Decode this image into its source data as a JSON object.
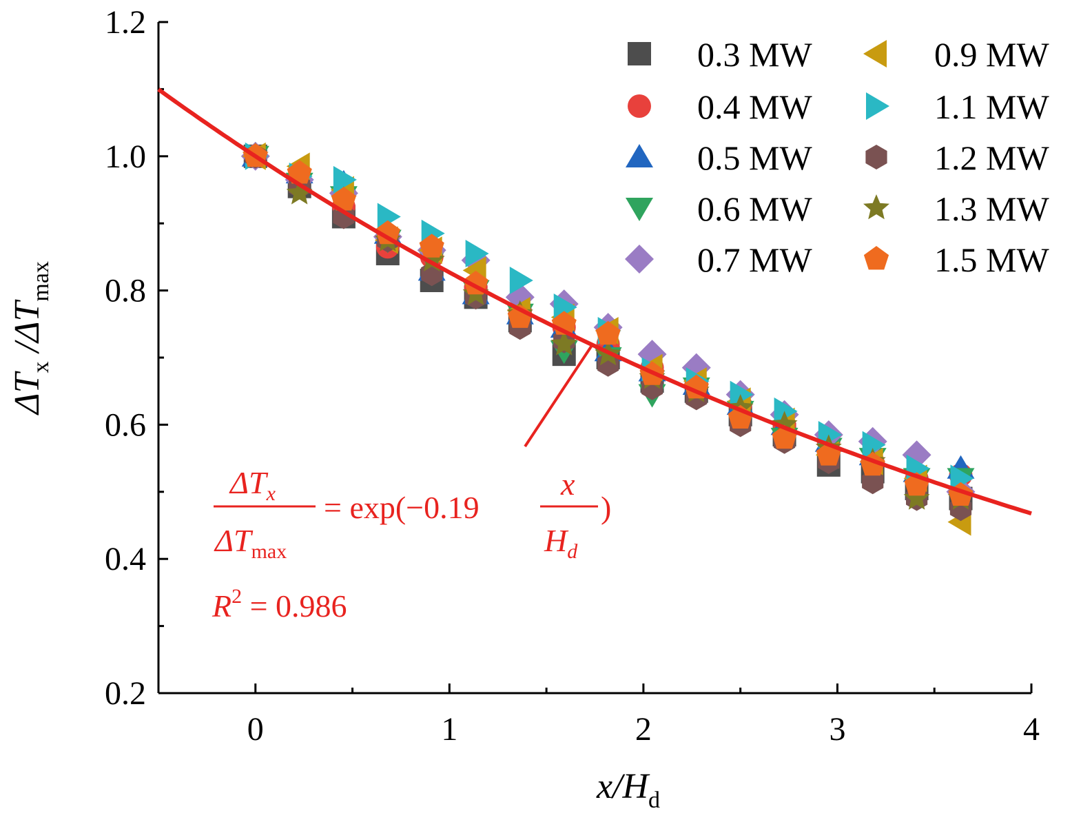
{
  "chart_data": {
    "type": "scatter",
    "xlabel": "x/H",
    "xlabel_sub": "d",
    "ylabel": "ΔT",
    "ylabel_sub1": "x",
    "ylabel_mid": " /ΔT",
    "ylabel_sub2": "max",
    "xlim": [
      -0.5,
      4
    ],
    "ylim": [
      0.2,
      1.2
    ],
    "x_ticks": [
      0,
      1,
      2,
      3,
      4
    ],
    "x_tick_labels": [
      "0",
      "1",
      "2",
      "3",
      "4"
    ],
    "y_ticks": [
      0.2,
      0.4,
      0.6,
      0.8,
      1.0,
      1.2
    ],
    "y_tick_labels": [
      "0.2",
      "0.4",
      "0.6",
      "0.8",
      "1.0",
      "1.2"
    ],
    "legend_position": "top-right",
    "x": [
      0,
      0.227,
      0.455,
      0.682,
      0.909,
      1.136,
      1.364,
      1.591,
      1.818,
      2.045,
      2.273,
      2.5,
      2.727,
      2.955,
      3.182,
      3.409,
      3.636
    ],
    "series": [
      {
        "name": "0.3 MW",
        "marker": "square",
        "color": "#4d4d4d",
        "values": [
          1.0,
          0.955,
          0.91,
          0.855,
          0.815,
          0.79,
          0.755,
          0.705,
          0.7,
          0.665,
          0.65,
          0.615,
          0.585,
          0.54,
          0.53,
          0.505,
          0.49
        ]
      },
      {
        "name": "0.4 MW",
        "marker": "circle",
        "color": "#e8413c",
        "values": [
          1.0,
          0.97,
          0.925,
          0.865,
          0.85,
          0.805,
          0.77,
          0.745,
          0.72,
          0.685,
          0.66,
          0.63,
          0.6,
          0.575,
          0.545,
          0.52,
          0.525
        ]
      },
      {
        "name": "0.5 MW",
        "marker": "triangle-up",
        "color": "#2166c0",
        "values": [
          1.0,
          0.975,
          0.96,
          0.885,
          0.83,
          0.795,
          0.765,
          0.745,
          0.71,
          0.68,
          0.66,
          0.63,
          0.6,
          0.575,
          0.555,
          0.53,
          0.535
        ]
      },
      {
        "name": "0.6 MW",
        "marker": "triangle-down",
        "color": "#2fa45e",
        "values": [
          1.0,
          0.96,
          0.94,
          0.875,
          0.845,
          0.8,
          0.765,
          0.71,
          0.7,
          0.645,
          0.655,
          0.62,
          0.58,
          0.565,
          0.55,
          0.52,
          0.52
        ]
      },
      {
        "name": "0.7 MW",
        "marker": "diamond",
        "color": "#9a7cc4",
        "values": [
          1.0,
          0.965,
          0.945,
          0.88,
          0.86,
          0.845,
          0.79,
          0.78,
          0.745,
          0.705,
          0.685,
          0.645,
          0.615,
          0.585,
          0.575,
          0.555,
          0.5
        ]
      },
      {
        "name": "0.9 MW",
        "marker": "triangle-left",
        "color": "#c89b10",
        "values": [
          1.0,
          0.985,
          0.95,
          0.875,
          0.86,
          0.83,
          0.77,
          0.76,
          0.74,
          0.685,
          0.665,
          0.635,
          0.605,
          0.555,
          0.545,
          0.52,
          0.455
        ]
      },
      {
        "name": "1.1 MW",
        "marker": "triangle-right",
        "color": "#2ab8c4",
        "values": [
          1.0,
          0.97,
          0.965,
          0.91,
          0.885,
          0.855,
          0.815,
          0.775,
          0.74,
          0.68,
          0.665,
          0.645,
          0.62,
          0.585,
          0.57,
          0.535,
          0.52
        ]
      },
      {
        "name": "1.2 MW",
        "marker": "hexagon",
        "color": "#7a5252",
        "values": [
          1.0,
          0.955,
          0.91,
          0.875,
          0.825,
          0.79,
          0.745,
          0.725,
          0.69,
          0.655,
          0.64,
          0.6,
          0.575,
          0.545,
          0.515,
          0.49,
          0.475
        ]
      },
      {
        "name": "1.3 MW",
        "marker": "star",
        "color": "#7d7a24",
        "values": [
          1.0,
          0.945,
          0.935,
          0.875,
          0.845,
          0.795,
          0.765,
          0.72,
          0.705,
          0.67,
          0.65,
          0.625,
          0.6,
          0.565,
          0.545,
          0.49,
          0.49
        ]
      },
      {
        "name": "1.5 MW",
        "marker": "pentagon",
        "color": "#ef6b1f",
        "values": [
          1.0,
          0.975,
          0.935,
          0.885,
          0.865,
          0.81,
          0.76,
          0.75,
          0.735,
          0.675,
          0.655,
          0.61,
          0.58,
          0.555,
          0.54,
          0.51,
          0.495
        ]
      }
    ],
    "fit": {
      "model": "exp",
      "coefficient": -0.19,
      "color": "#e8231f",
      "x_range": [
        -0.5,
        4
      ],
      "equation": {
        "num_main": "ΔT",
        "num_sub": "x",
        "den_main": "ΔT",
        "den_sub": "max",
        "middle": "= exp(−0.19",
        "frac_num": "x",
        "frac_den_main": "H",
        "frac_den_sub": "d",
        "close": ")"
      },
      "r2_label": "R",
      "r2_sup": "2",
      "r2_value": " = 0.986"
    }
  }
}
